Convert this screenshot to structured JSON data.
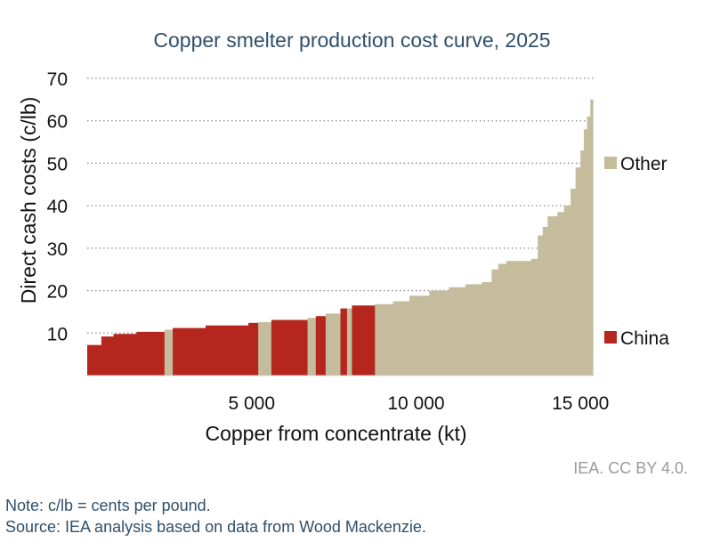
{
  "chart_data": {
    "type": "bar",
    "title": "Copper smelter production cost curve, 2025",
    "xlabel": "Copper from concentrate (kt)",
    "ylabel": "Direct cash costs (c/lb)",
    "xlim": [
      0,
      15400
    ],
    "ylim": [
      0,
      70
    ],
    "yticks": [
      "10",
      "20",
      "30",
      "40",
      "50",
      "60",
      "70"
    ],
    "xticks": [
      {
        "value": 5000,
        "label": "5 000"
      },
      {
        "value": 10000,
        "label": "10 000"
      },
      {
        "value": 15000,
        "label": "15 000"
      }
    ],
    "grid": "horizontal dotted",
    "legend_position": "right",
    "series": [
      {
        "name": "Other",
        "color": "#c4bc9c"
      },
      {
        "name": "China",
        "color": "#b5261e"
      }
    ],
    "segments": [
      {
        "x0": 0,
        "x1": 430,
        "value": 7.2,
        "series": "China"
      },
      {
        "x0": 430,
        "x1": 800,
        "value": 9.2,
        "series": "China"
      },
      {
        "x0": 800,
        "x1": 1500,
        "value": 9.8,
        "series": "China"
      },
      {
        "x0": 1500,
        "x1": 2350,
        "value": 10.3,
        "series": "China"
      },
      {
        "x0": 2350,
        "x1": 2600,
        "value": 10.8,
        "series": "Other"
      },
      {
        "x0": 2600,
        "x1": 3600,
        "value": 11.2,
        "series": "China"
      },
      {
        "x0": 3600,
        "x1": 4900,
        "value": 11.8,
        "series": "China"
      },
      {
        "x0": 4900,
        "x1": 5200,
        "value": 12.4,
        "series": "China"
      },
      {
        "x0": 5200,
        "x1": 5600,
        "value": 12.6,
        "series": "Other"
      },
      {
        "x0": 5600,
        "x1": 6700,
        "value": 13.1,
        "series": "China"
      },
      {
        "x0": 6700,
        "x1": 6950,
        "value": 13.6,
        "series": "Other"
      },
      {
        "x0": 6950,
        "x1": 7250,
        "value": 14.0,
        "series": "China"
      },
      {
        "x0": 7250,
        "x1": 7700,
        "value": 14.6,
        "series": "Other"
      },
      {
        "x0": 7700,
        "x1": 7900,
        "value": 15.8,
        "series": "China"
      },
      {
        "x0": 7900,
        "x1": 8050,
        "value": 15.8,
        "series": "Other"
      },
      {
        "x0": 8050,
        "x1": 8750,
        "value": 16.5,
        "series": "China"
      },
      {
        "x0": 8750,
        "x1": 9300,
        "value": 16.8,
        "series": "Other"
      },
      {
        "x0": 9300,
        "x1": 9800,
        "value": 17.5,
        "series": "Other"
      },
      {
        "x0": 9800,
        "x1": 10400,
        "value": 18.8,
        "series": "Other"
      },
      {
        "x0": 10400,
        "x1": 11000,
        "value": 20.0,
        "series": "Other"
      },
      {
        "x0": 11000,
        "x1": 11500,
        "value": 20.8,
        "series": "Other"
      },
      {
        "x0": 11500,
        "x1": 12000,
        "value": 21.5,
        "series": "Other"
      },
      {
        "x0": 12000,
        "x1": 12300,
        "value": 22.0,
        "series": "Other"
      },
      {
        "x0": 12300,
        "x1": 12500,
        "value": 25.0,
        "series": "Other"
      },
      {
        "x0": 12500,
        "x1": 12750,
        "value": 26.3,
        "series": "Other"
      },
      {
        "x0": 12750,
        "x1": 13500,
        "value": 27.0,
        "series": "Other"
      },
      {
        "x0": 13500,
        "x1": 13700,
        "value": 27.5,
        "series": "Other"
      },
      {
        "x0": 13700,
        "x1": 13850,
        "value": 33.0,
        "series": "Other"
      },
      {
        "x0": 13850,
        "x1": 14000,
        "value": 35.0,
        "series": "Other"
      },
      {
        "x0": 14000,
        "x1": 14300,
        "value": 37.5,
        "series": "Other"
      },
      {
        "x0": 14300,
        "x1": 14500,
        "value": 38.5,
        "series": "Other"
      },
      {
        "x0": 14500,
        "x1": 14700,
        "value": 40.0,
        "series": "Other"
      },
      {
        "x0": 14700,
        "x1": 14850,
        "value": 44.0,
        "series": "Other"
      },
      {
        "x0": 14850,
        "x1": 15000,
        "value": 49.0,
        "series": "Other"
      },
      {
        "x0": 15000,
        "x1": 15100,
        "value": 53.0,
        "series": "Other"
      },
      {
        "x0": 15100,
        "x1": 15200,
        "value": 58.0,
        "series": "Other"
      },
      {
        "x0": 15200,
        "x1": 15300,
        "value": 61.0,
        "series": "Other"
      },
      {
        "x0": 15300,
        "x1": 15380,
        "value": 65.0,
        "series": "Other"
      }
    ]
  },
  "credit": "IEA. CC BY 4.0.",
  "notes": {
    "note": "Note: c/lb = cents per pound.",
    "source": "Source: IEA analysis based on data from Wood Mackenzie."
  }
}
